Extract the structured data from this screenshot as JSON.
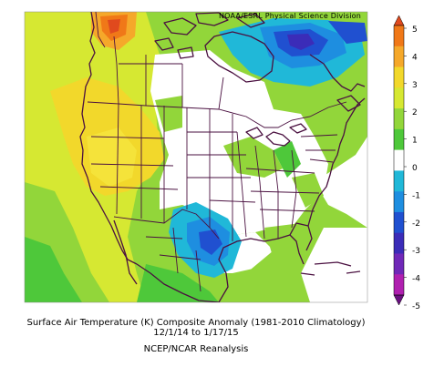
{
  "header": {
    "credit": "NOAA/ESRL Physical Science Division"
  },
  "caption": {
    "line1": "Surface Air Temperature (K) Composite Anomaly (1981-2010 Climatology)",
    "line2": "12/1/14 to 1/17/15",
    "line3": "NCEP/NCAR Reanalysis"
  },
  "colorbar": {
    "labels": [
      "5",
      "4",
      "3",
      "2",
      "1",
      "0",
      "-1",
      "-2",
      "-3",
      "-4",
      "-5"
    ],
    "colors": [
      "#e04a1e",
      "#f07818",
      "#f5a82a",
      "#f2d82b",
      "#d6e832",
      "#92d63a",
      "#4ec83a",
      "#ffffff",
      "#20b8d8",
      "#1e8ee0",
      "#2050d0",
      "#3b2cb8",
      "#7028b8",
      "#b020b0",
      "#6a1080"
    ],
    "min": -5,
    "max": 5,
    "units": "K"
  },
  "map": {
    "region": "North America",
    "features": [
      "coastlines",
      "US state borders",
      "Canadian province borders"
    ],
    "anomaly_regions": [
      {
        "area": "Pacific coast & western US",
        "anomaly": "+2 to +3"
      },
      {
        "area": "Yukon / coastal Alaska",
        "anomaly": "+4"
      },
      {
        "area": "Hudson Bay",
        "anomaly": "-1 to -3"
      },
      {
        "area": "Texas / northern Mexico",
        "anomaly": "-1 to -3"
      },
      {
        "area": "Eastern US",
        "anomaly": "0"
      }
    ]
  }
}
